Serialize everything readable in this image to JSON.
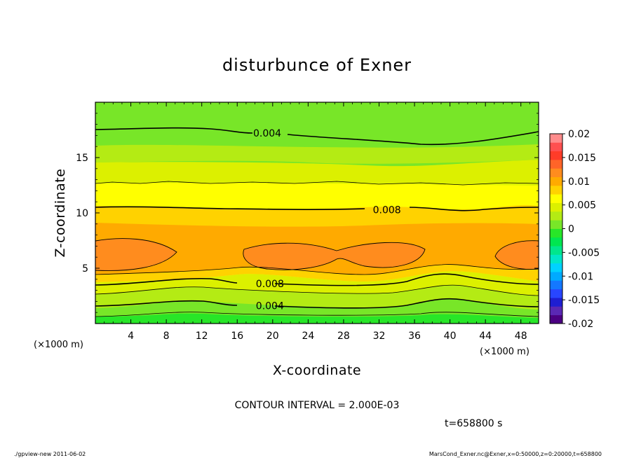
{
  "chart_data": {
    "type": "heatmap",
    "title": "disturbunce of Exner",
    "xlabel": "X-coordinate",
    "ylabel": "Z-coordinate",
    "x_unit": "(×1000 m)",
    "y_unit": "(×1000 m)",
    "xlim": [
      0,
      50
    ],
    "ylim": [
      0,
      20
    ],
    "x_ticks": [
      4,
      8,
      12,
      16,
      20,
      24,
      28,
      32,
      36,
      40,
      44,
      48
    ],
    "y_ticks": [
      5,
      10,
      15
    ],
    "x_ticklabels": [
      "4",
      "8",
      "12",
      "16",
      "20",
      "24",
      "28",
      "32",
      "36",
      "40",
      "44",
      "48"
    ],
    "y_ticklabels": [
      "5",
      "10",
      "15"
    ],
    "contour_interval_text": "CONTOUR INTERVAL = 2.000E-03",
    "time_text": "t=658800 s",
    "colorbar": {
      "range": [
        -0.02,
        0.02
      ],
      "ticks": [
        "0.02",
        "0.015",
        "0.01",
        "0.005",
        "0",
        "-0.005",
        "-0.01",
        "-0.015",
        "-0.02"
      ],
      "colors": [
        "#4b0082",
        "#5a28b4",
        "#1e1ed2",
        "#2846ff",
        "#1478ff",
        "#00aaff",
        "#00d2ff",
        "#00e6c8",
        "#00e68c",
        "#00e650",
        "#28e628",
        "#78e628",
        "#b4eb14",
        "#dcf000",
        "#ffff00",
        "#ffd200",
        "#ffaa00",
        "#ff8c1e",
        "#ff6428",
        "#ff3c28",
        "#ff5050",
        "#ff8c8c"
      ]
    },
    "contour_labels": [
      {
        "text": "0.004",
        "x": 17.8,
        "z": 17.2
      },
      {
        "text": "0.008",
        "x": 31.3,
        "z": 10.3
      },
      {
        "text": "0.008",
        "x": 18.1,
        "z": 3.6
      },
      {
        "text": "0.004",
        "x": 18.1,
        "z": 1.6
      }
    ],
    "field_description": "horizontally layered positive disturbance peaking near z=6 km"
  },
  "footer": {
    "left": "./gpview-new   2011-06-02",
    "right": "MarsCond_Exner.nc@Exner,x=0:50000,z=0:20000,t=658800"
  }
}
